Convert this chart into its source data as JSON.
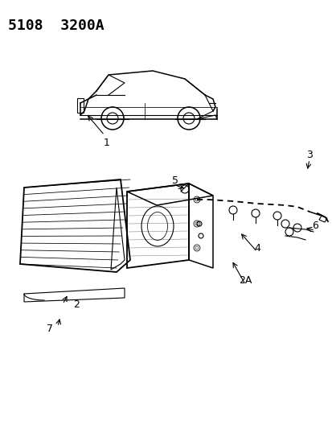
{
  "title": "5108  3200A",
  "bg_color": "#ffffff",
  "line_color": "#000000",
  "title_fontsize": 13,
  "fig_width": 4.14,
  "fig_height": 5.33,
  "dpi": 100
}
